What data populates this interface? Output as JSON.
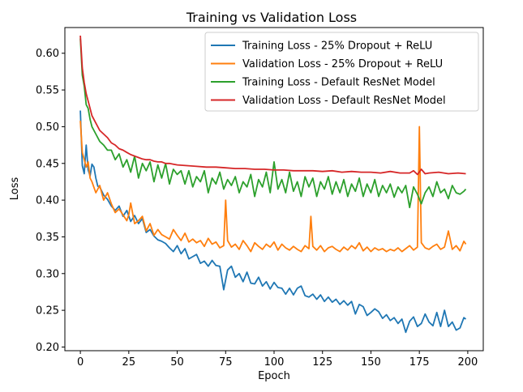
{
  "chart_data": {
    "type": "line",
    "title": "Training vs Validation Loss",
    "xlabel": "Epoch",
    "ylabel": "Loss",
    "xlim": [
      -8,
      208
    ],
    "ylim": [
      0.195,
      0.635
    ],
    "xticks": [
      0,
      25,
      50,
      75,
      100,
      125,
      150,
      175,
      200
    ],
    "yticks": [
      0.2,
      0.25,
      0.3,
      0.35,
      0.4,
      0.45,
      0.5,
      0.55,
      0.6
    ],
    "ytick_labels": [
      "0.20",
      "0.25",
      "0.30",
      "0.35",
      "0.40",
      "0.45",
      "0.50",
      "0.55",
      "0.60"
    ],
    "grid": false,
    "legend": "top-right",
    "series": [
      {
        "name": "Training Loss - 25% Dropout + ReLU",
        "color": "#1f77b4",
        "x": [
          0,
          1,
          2,
          3,
          4,
          5,
          6,
          7,
          8,
          9,
          10,
          12,
          14,
          16,
          18,
          20,
          22,
          24,
          26,
          28,
          30,
          32,
          34,
          36,
          38,
          40,
          42,
          44,
          46,
          48,
          50,
          52,
          54,
          56,
          58,
          60,
          62,
          64,
          66,
          68,
          70,
          72,
          74,
          76,
          78,
          80,
          82,
          84,
          86,
          88,
          90,
          92,
          94,
          96,
          98,
          100,
          102,
          104,
          106,
          108,
          110,
          112,
          114,
          116,
          118,
          120,
          122,
          124,
          126,
          128,
          130,
          132,
          134,
          136,
          138,
          140,
          142,
          144,
          146,
          148,
          150,
          152,
          154,
          156,
          158,
          160,
          162,
          164,
          166,
          168,
          170,
          172,
          174,
          176,
          178,
          180,
          182,
          184,
          186,
          188,
          190,
          192,
          194,
          196,
          198,
          199
        ],
        "values": [
          0.522,
          0.447,
          0.436,
          0.475,
          0.441,
          0.433,
          0.449,
          0.445,
          0.43,
          0.419,
          0.418,
          0.407,
          0.401,
          0.392,
          0.386,
          0.392,
          0.378,
          0.386,
          0.371,
          0.379,
          0.368,
          0.375,
          0.356,
          0.36,
          0.351,
          0.346,
          0.344,
          0.341,
          0.335,
          0.33,
          0.338,
          0.327,
          0.334,
          0.32,
          0.323,
          0.326,
          0.314,
          0.317,
          0.31,
          0.318,
          0.311,
          0.31,
          0.278,
          0.305,
          0.31,
          0.295,
          0.3,
          0.289,
          0.302,
          0.287,
          0.286,
          0.295,
          0.283,
          0.289,
          0.279,
          0.288,
          0.281,
          0.28,
          0.272,
          0.28,
          0.271,
          0.28,
          0.283,
          0.27,
          0.268,
          0.272,
          0.265,
          0.271,
          0.262,
          0.268,
          0.261,
          0.265,
          0.258,
          0.263,
          0.257,
          0.262,
          0.245,
          0.258,
          0.255,
          0.243,
          0.247,
          0.252,
          0.248,
          0.239,
          0.244,
          0.236,
          0.24,
          0.232,
          0.238,
          0.22,
          0.235,
          0.241,
          0.228,
          0.232,
          0.245,
          0.234,
          0.229,
          0.247,
          0.228,
          0.25,
          0.228,
          0.234,
          0.223,
          0.226,
          0.24,
          0.238
        ]
      },
      {
        "name": "Validation Loss - 25% Dropout + ReLU",
        "color": "#ff7f0e",
        "x": [
          0,
          1,
          2,
          3,
          4,
          5,
          6,
          8,
          10,
          12,
          14,
          16,
          18,
          20,
          22,
          24,
          25,
          26,
          28,
          30,
          32,
          34,
          36,
          38,
          40,
          42,
          44,
          46,
          48,
          50,
          52,
          54,
          56,
          58,
          60,
          62,
          64,
          66,
          68,
          70,
          72,
          74,
          75,
          76,
          78,
          80,
          82,
          84,
          86,
          88,
          90,
          92,
          94,
          96,
          98,
          100,
          102,
          104,
          106,
          108,
          110,
          112,
          114,
          116,
          118,
          119,
          120,
          122,
          124,
          126,
          128,
          130,
          132,
          134,
          136,
          138,
          140,
          142,
          144,
          146,
          148,
          150,
          152,
          154,
          156,
          158,
          160,
          162,
          164,
          166,
          168,
          170,
          172,
          174,
          175,
          176,
          178,
          180,
          182,
          184,
          186,
          188,
          190,
          192,
          194,
          196,
          198,
          199
        ],
        "values": [
          0.508,
          0.465,
          0.455,
          0.445,
          0.452,
          0.43,
          0.425,
          0.41,
          0.42,
          0.4,
          0.41,
          0.395,
          0.383,
          0.388,
          0.38,
          0.372,
          0.38,
          0.396,
          0.368,
          0.372,
          0.378,
          0.358,
          0.368,
          0.352,
          0.36,
          0.353,
          0.35,
          0.347,
          0.36,
          0.352,
          0.345,
          0.355,
          0.343,
          0.347,
          0.342,
          0.345,
          0.337,
          0.348,
          0.34,
          0.343,
          0.335,
          0.338,
          0.4,
          0.345,
          0.336,
          0.34,
          0.333,
          0.345,
          0.338,
          0.33,
          0.342,
          0.337,
          0.333,
          0.34,
          0.336,
          0.343,
          0.332,
          0.34,
          0.335,
          0.332,
          0.337,
          0.333,
          0.33,
          0.338,
          0.334,
          0.378,
          0.337,
          0.332,
          0.338,
          0.33,
          0.335,
          0.337,
          0.333,
          0.33,
          0.336,
          0.332,
          0.338,
          0.334,
          0.342,
          0.331,
          0.336,
          0.33,
          0.335,
          0.332,
          0.334,
          0.33,
          0.333,
          0.331,
          0.335,
          0.33,
          0.334,
          0.338,
          0.332,
          0.336,
          0.5,
          0.342,
          0.335,
          0.333,
          0.337,
          0.34,
          0.333,
          0.336,
          0.358,
          0.333,
          0.338,
          0.331,
          0.344,
          0.34
        ]
      },
      {
        "name": "Training Loss - Default ResNet Model",
        "color": "#2ca02c",
        "x": [
          0,
          1,
          2,
          3,
          4,
          5,
          6,
          8,
          10,
          12,
          14,
          16,
          18,
          20,
          22,
          24,
          26,
          28,
          30,
          32,
          34,
          36,
          38,
          40,
          42,
          44,
          46,
          48,
          50,
          52,
          54,
          56,
          58,
          60,
          62,
          64,
          66,
          68,
          70,
          72,
          74,
          76,
          78,
          80,
          82,
          84,
          86,
          88,
          90,
          92,
          94,
          96,
          98,
          100,
          102,
          104,
          106,
          108,
          110,
          112,
          114,
          116,
          118,
          120,
          122,
          124,
          126,
          128,
          130,
          132,
          134,
          136,
          138,
          140,
          142,
          144,
          146,
          148,
          150,
          152,
          154,
          156,
          158,
          160,
          162,
          164,
          166,
          168,
          170,
          172,
          174,
          176,
          178,
          180,
          182,
          184,
          186,
          188,
          190,
          192,
          194,
          196,
          198,
          199
        ],
        "values": [
          0.62,
          0.57,
          0.555,
          0.53,
          0.525,
          0.51,
          0.5,
          0.49,
          0.48,
          0.475,
          0.468,
          0.468,
          0.455,
          0.463,
          0.445,
          0.455,
          0.438,
          0.46,
          0.43,
          0.45,
          0.44,
          0.452,
          0.425,
          0.448,
          0.43,
          0.45,
          0.422,
          0.442,
          0.435,
          0.44,
          0.422,
          0.44,
          0.418,
          0.432,
          0.425,
          0.44,
          0.41,
          0.43,
          0.422,
          0.438,
          0.415,
          0.428,
          0.42,
          0.432,
          0.41,
          0.425,
          0.418,
          0.435,
          0.405,
          0.428,
          0.418,
          0.438,
          0.41,
          0.452,
          0.415,
          0.428,
          0.41,
          0.438,
          0.412,
          0.425,
          0.405,
          0.432,
          0.418,
          0.43,
          0.405,
          0.425,
          0.415,
          0.432,
          0.408,
          0.425,
          0.41,
          0.428,
          0.405,
          0.422,
          0.412,
          0.43,
          0.405,
          0.422,
          0.41,
          0.428,
          0.405,
          0.42,
          0.41,
          0.422,
          0.404,
          0.418,
          0.41,
          0.42,
          0.39,
          0.418,
          0.408,
          0.395,
          0.41,
          0.418,
          0.405,
          0.425,
          0.41,
          0.415,
          0.402,
          0.42,
          0.41,
          0.408,
          0.412,
          0.415
        ]
      },
      {
        "name": "Validation Loss - Default ResNet Model",
        "color": "#d62728",
        "x": [
          0,
          1,
          2,
          3,
          4,
          5,
          6,
          8,
          10,
          12,
          14,
          16,
          18,
          20,
          22,
          24,
          26,
          28,
          30,
          32,
          34,
          36,
          38,
          40,
          42,
          44,
          46,
          48,
          50,
          55,
          60,
          65,
          70,
          75,
          80,
          85,
          90,
          95,
          100,
          105,
          110,
          115,
          120,
          125,
          130,
          135,
          140,
          145,
          150,
          155,
          160,
          165,
          170,
          172,
          174,
          176,
          178,
          180,
          185,
          190,
          195,
          199
        ],
        "values": [
          0.624,
          0.58,
          0.56,
          0.545,
          0.535,
          0.525,
          0.515,
          0.505,
          0.495,
          0.49,
          0.485,
          0.478,
          0.475,
          0.47,
          0.468,
          0.465,
          0.462,
          0.46,
          0.458,
          0.456,
          0.455,
          0.455,
          0.453,
          0.452,
          0.452,
          0.45,
          0.45,
          0.449,
          0.448,
          0.447,
          0.446,
          0.445,
          0.445,
          0.444,
          0.443,
          0.443,
          0.442,
          0.442,
          0.441,
          0.441,
          0.44,
          0.44,
          0.44,
          0.439,
          0.44,
          0.438,
          0.439,
          0.438,
          0.438,
          0.437,
          0.439,
          0.437,
          0.437,
          0.44,
          0.435,
          0.442,
          0.436,
          0.437,
          0.438,
          0.436,
          0.437,
          0.436
        ]
      }
    ]
  }
}
